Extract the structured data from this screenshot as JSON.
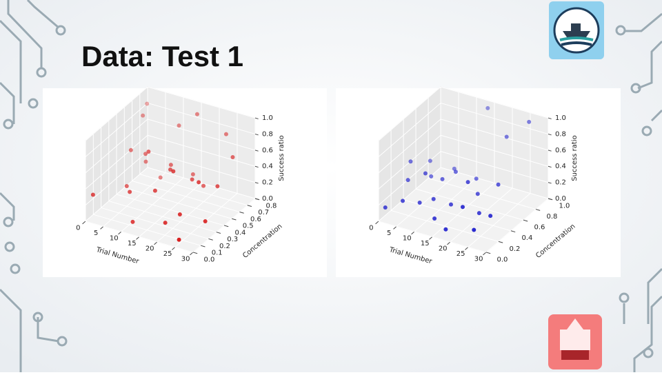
{
  "title": "Data: Test 1",
  "chart_data": [
    {
      "type": "scatter3d",
      "color": "#d40000",
      "xlabel": "Trial Number",
      "ylabel": "Concentration",
      "zlabel": "Success ratio",
      "xlim": [
        0,
        30
      ],
      "xticks": [
        0,
        5,
        10,
        15,
        20,
        25,
        30
      ],
      "ylim": [
        0,
        0.8
      ],
      "yticks": [
        {
          "value": 0,
          "label": "0.0"
        },
        0.1,
        0.2,
        0.3,
        0.4,
        0.5,
        0.6,
        0.7,
        0.8
      ],
      "zlim": [
        0,
        1
      ],
      "zticks": [
        {
          "value": 0,
          "label": "0.0"
        },
        0.2,
        0.4,
        0.6,
        0.8,
        {
          "value": 1,
          "label": "1.0"
        }
      ],
      "x": [
        1,
        2,
        3,
        4,
        5,
        6,
        7,
        8,
        9,
        10,
        11,
        12,
        13,
        14,
        15,
        16,
        17,
        18,
        19,
        20,
        21,
        22,
        23,
        24,
        25,
        26,
        27,
        28
      ],
      "y": [
        0.05,
        0.7,
        0.6,
        0.4,
        0.3,
        0.5,
        0.45,
        0.2,
        0.55,
        0.35,
        0.1,
        0.65,
        0.5,
        0.25,
        0.4,
        0.7,
        0.6,
        0.3,
        0.15,
        0.45,
        0.55,
        0.2,
        0.75,
        0.35,
        0.05,
        0.5,
        0.65,
        0.25
      ],
      "z": [
        0.3,
        0.9,
        0.85,
        0.6,
        0.25,
        0.4,
        0.55,
        0.3,
        0.2,
        0.7,
        0.05,
        0.8,
        0.45,
        0.35,
        0.5,
        0.95,
        0.3,
        0.6,
        0.1,
        0.4,
        0.25,
        0.2,
        0.75,
        0.5,
        0.05,
        0.35,
        0.6,
        0.15
      ]
    },
    {
      "type": "scatter3d",
      "color": "#0000c8",
      "xlabel": "Trial Number",
      "ylabel": "Concentration",
      "zlabel": "Success ratio",
      "xlim": [
        0,
        30
      ],
      "xticks": [
        0,
        5,
        10,
        15,
        20,
        25,
        30
      ],
      "ylim": [
        0,
        1
      ],
      "yticks": [
        {
          "value": 0,
          "label": "0.0"
        },
        0.2,
        0.4,
        0.6,
        0.8,
        {
          "value": 1,
          "label": "1.0"
        }
      ],
      "zlim": [
        0,
        1
      ],
      "zticks": [
        {
          "value": 0,
          "label": "0.0"
        },
        0.2,
        0.4,
        0.6,
        0.8,
        {
          "value": 1,
          "label": "1.0"
        }
      ],
      "x": [
        1,
        2,
        3,
        4,
        5,
        6,
        7,
        8,
        9,
        10,
        11,
        12,
        13,
        14,
        15,
        16,
        17,
        18,
        19,
        20,
        21,
        22,
        23,
        24,
        25,
        26
      ],
      "y": [
        0.05,
        0.4,
        0.3,
        0.6,
        0.1,
        0.5,
        0.35,
        0.2,
        0.7,
        0.45,
        0.25,
        0.55,
        0.15,
        0.95,
        0.3,
        0.65,
        0.1,
        0.4,
        0.5,
        0.2,
        0.85,
        0.35,
        0.6,
        0.15,
        0.98,
        0.3
      ],
      "z": [
        0.15,
        0.5,
        0.35,
        0.4,
        0.25,
        0.3,
        0.45,
        0.2,
        0.3,
        0.35,
        0.25,
        0.4,
        0.1,
        0.95,
        0.2,
        0.3,
        0.05,
        0.45,
        0.25,
        0.3,
        0.75,
        0.15,
        0.35,
        0.1,
        0.9,
        0.2
      ]
    }
  ]
}
